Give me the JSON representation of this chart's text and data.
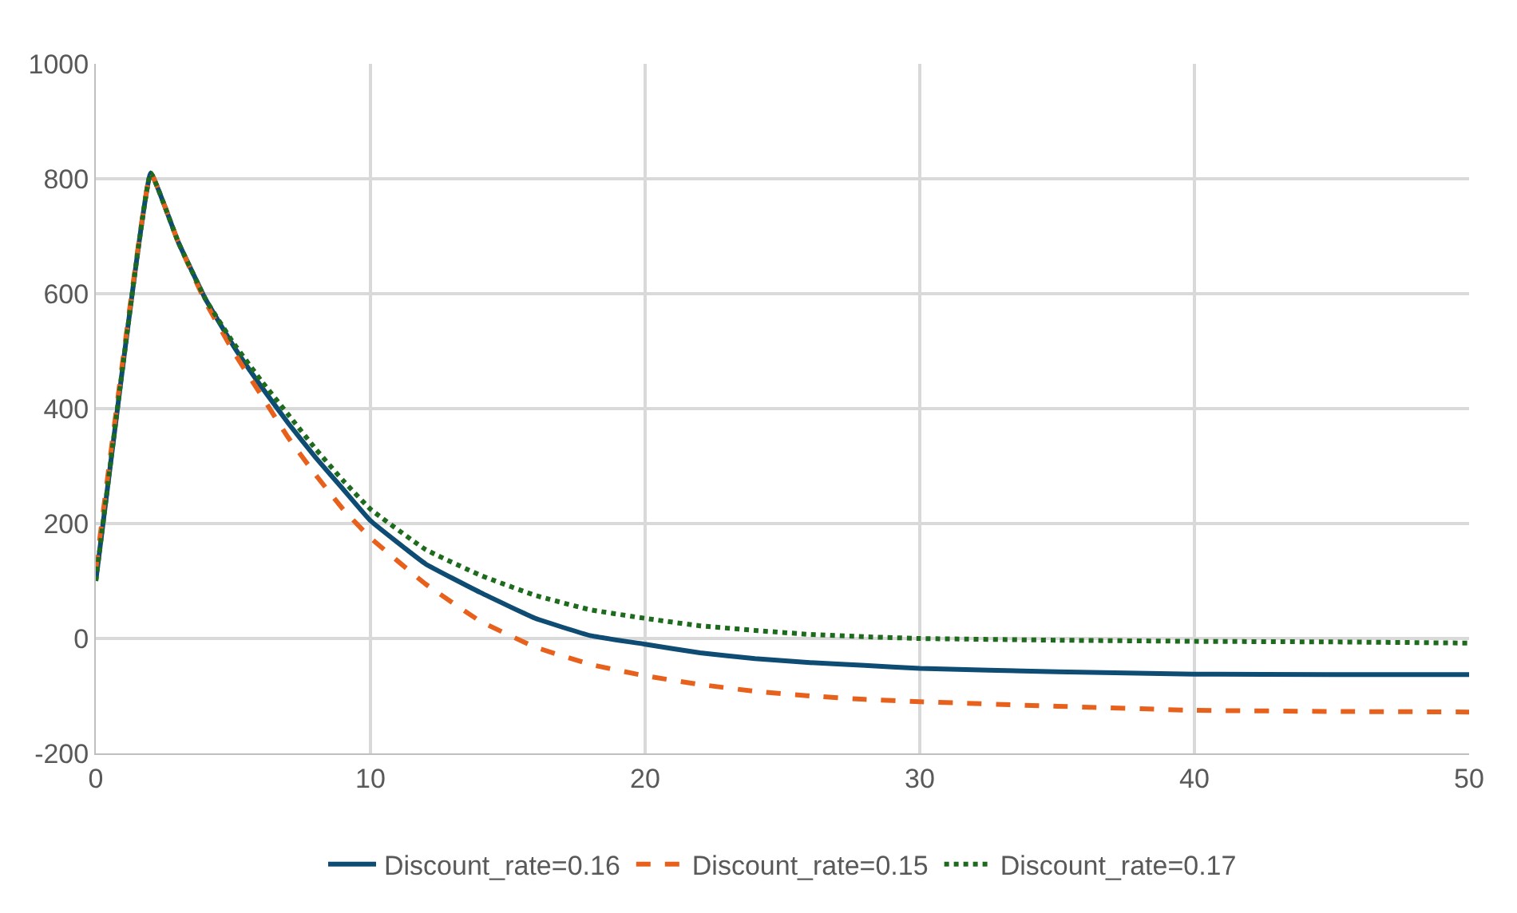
{
  "chart_data": {
    "type": "line",
    "x": [
      0,
      1,
      2,
      3,
      4,
      5,
      6,
      7,
      8,
      9,
      10,
      12,
      14,
      16,
      18,
      20,
      22,
      24,
      26,
      28,
      30,
      35,
      40,
      45,
      50
    ],
    "series": [
      {
        "name": "Discount_rate=0.16",
        "color": "#0e4c73",
        "line_style": "solid",
        "values": [
          100,
          480,
          810,
          690,
          590,
          510,
          440,
          375,
          315,
          260,
          205,
          130,
          80,
          35,
          5,
          -10,
          -25,
          -35,
          -42,
          -47,
          -52,
          -58,
          -62,
          -63,
          -63
        ]
      },
      {
        "name": "Discount_rate=0.15",
        "color": "#e8611c",
        "line_style": "dashed",
        "values": [
          120,
          490,
          810,
          690,
          585,
          500,
          425,
          350,
          285,
          225,
          175,
          95,
          30,
          -15,
          -45,
          -65,
          -80,
          -92,
          -100,
          -106,
          -110,
          -118,
          -125,
          -127,
          -128
        ]
      },
      {
        "name": "Discount_rate=0.17",
        "color": "#1e6b1e",
        "line_style": "dotted",
        "values": [
          100,
          480,
          810,
          690,
          590,
          515,
          450,
          390,
          330,
          275,
          225,
          155,
          110,
          75,
          50,
          35,
          22,
          14,
          7,
          3,
          0,
          -3,
          -5,
          -6,
          -8
        ]
      }
    ],
    "xlim": [
      0,
      50
    ],
    "xticks": [
      0,
      10,
      20,
      30,
      40,
      50
    ],
    "ylim": [
      -200,
      1000
    ],
    "yticks": [
      -200,
      0,
      200,
      400,
      600,
      800,
      1000
    ],
    "grid": true,
    "legend": "bottom",
    "marker": "none"
  }
}
